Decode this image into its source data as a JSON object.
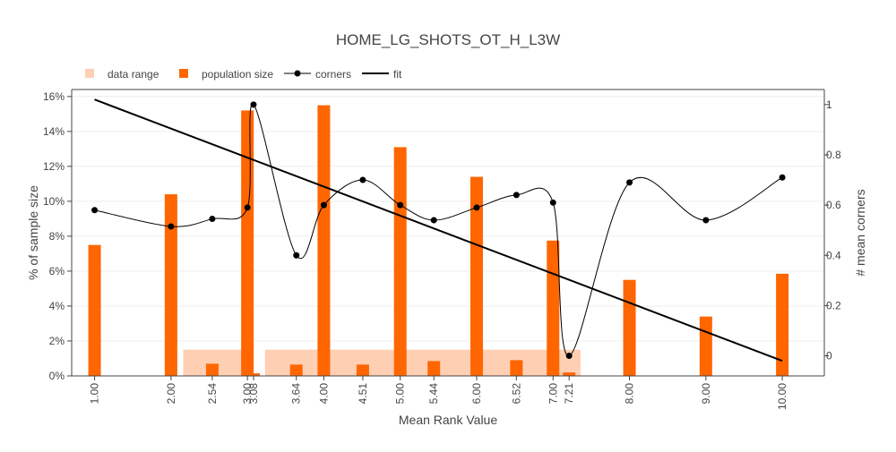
{
  "chart_data": {
    "type": "bar",
    "title": "HOME_LG_SHOTS_OT_H_L3W",
    "xlabel": "Mean Rank Value",
    "ylabel": "% of sample size",
    "y2label": "# mean corners",
    "legend": [
      "data range",
      "population size",
      "corners",
      "fit"
    ],
    "legend_position": "top-left",
    "grid": true,
    "xlim": [
      0.7,
      10.55
    ],
    "ylim": [
      0,
      16.4
    ],
    "y2lim": [
      -0.08,
      1.06
    ],
    "x_tick_labels": [
      "1.00",
      "2.00",
      "2.54",
      "3.00",
      "3.08",
      "3.64",
      "4.00",
      "4.51",
      "5.00",
      "5.44",
      "6.00",
      "6.52",
      "7.00",
      "7.21",
      "8.00",
      "9.00",
      "10.00"
    ],
    "y_tick_labels": [
      "0%",
      "2%",
      "4%",
      "6%",
      "8%",
      "10%",
      "12%",
      "14%",
      "16%"
    ],
    "y2_tick_labels": [
      "0",
      "0.2",
      "0.4",
      "0.6",
      "0.8",
      "1"
    ],
    "data_range": [
      {
        "from": 2.16,
        "to": 3.04
      },
      {
        "from": 3.23,
        "to": 3.88
      },
      {
        "from": 3.88,
        "to": 4.88
      },
      {
        "from": 4.88,
        "to": 6.07
      },
      {
        "from": 6.07,
        "to": 6.88
      },
      {
        "from": 6.88,
        "to": 7.36
      }
    ],
    "population_size": {
      "x": [
        1.0,
        2.0,
        2.54,
        3.0,
        3.08,
        3.64,
        4.0,
        4.51,
        5.0,
        5.44,
        6.0,
        6.52,
        7.0,
        7.21,
        8.0,
        9.0,
        10.0
      ],
      "values": [
        7.5,
        10.4,
        0.7,
        15.2,
        0.15,
        0.65,
        15.5,
        0.65,
        13.1,
        0.85,
        11.4,
        0.9,
        7.75,
        0.2,
        5.5,
        3.4,
        5.85
      ]
    },
    "corners": {
      "x": [
        1.0,
        2.0,
        2.54,
        3.0,
        3.08,
        3.64,
        4.0,
        4.51,
        5.0,
        5.44,
        6.0,
        6.52,
        7.0,
        7.21,
        8.0,
        9.0,
        10.0
      ],
      "values": [
        0.58,
        0.515,
        0.545,
        0.59,
        1.0,
        0.4,
        0.6,
        0.7,
        0.6,
        0.54,
        0.59,
        0.64,
        0.61,
        0.0,
        0.69,
        0.54,
        0.71
      ]
    },
    "fit": {
      "x": [
        1.0,
        10.0
      ],
      "values": [
        1.02,
        -0.02
      ]
    },
    "colors": {
      "data_range": "#ffcfb3",
      "population_size": "#ff6600",
      "corners": "#000000",
      "fit": "#000000",
      "grid": "#eeeeee",
      "axis": "#444444"
    }
  }
}
